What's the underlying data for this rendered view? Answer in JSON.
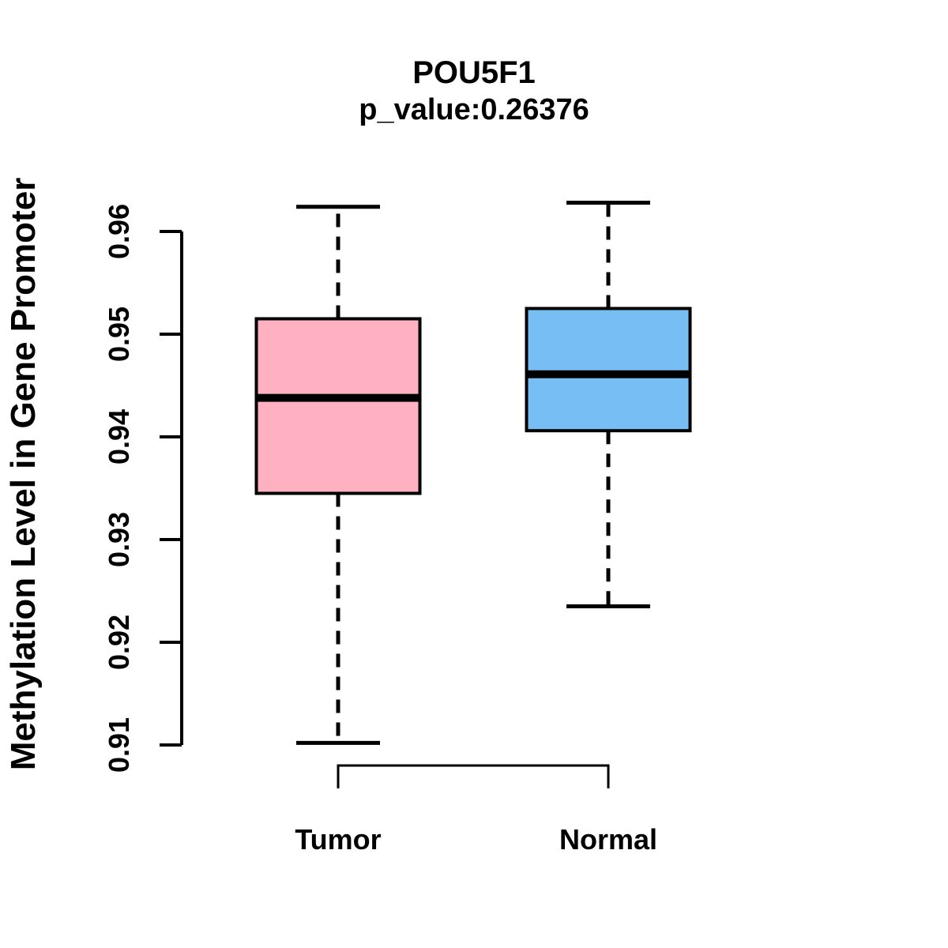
{
  "figure": {
    "background": "#FFFFFF"
  },
  "chart_data": {
    "type": "boxplot",
    "title": "POU5F1",
    "subtitle": "p_value:0.26376",
    "ylabel": "Methylation Level in Gene Promoter",
    "xlabel": "",
    "ylim": [
      0.91,
      0.96
    ],
    "yticks": [
      0.91,
      0.92,
      0.93,
      0.94,
      0.95,
      0.96
    ],
    "ytick_labels": [
      "0.91",
      "0.92",
      "0.93",
      "0.94",
      "0.95",
      "0.96"
    ],
    "categories": [
      "Tumor",
      "Normal"
    ],
    "series": [
      {
        "name": "Tumor",
        "whisker_low": 0.9102,
        "q1": 0.9345,
        "median": 0.9438,
        "q3": 0.9515,
        "whisker_high": 0.9624,
        "fill_color": "#FFB1C1"
      },
      {
        "name": "Normal",
        "whisker_low": 0.9235,
        "q1": 0.9406,
        "median": 0.9461,
        "q3": 0.9525,
        "whisker_high": 0.9628,
        "fill_color": "#77BEF5"
      }
    ],
    "colors": {
      "axis": "#000000",
      "box_border": "#000000",
      "median_line": "#000000",
      "text": "#000000",
      "background": "#FFFFFF"
    },
    "grid": false,
    "legend": "none",
    "whisker_style": "dashed",
    "tick_label_rotation_deg": 90,
    "ylabel_rotation_deg": 90
  }
}
